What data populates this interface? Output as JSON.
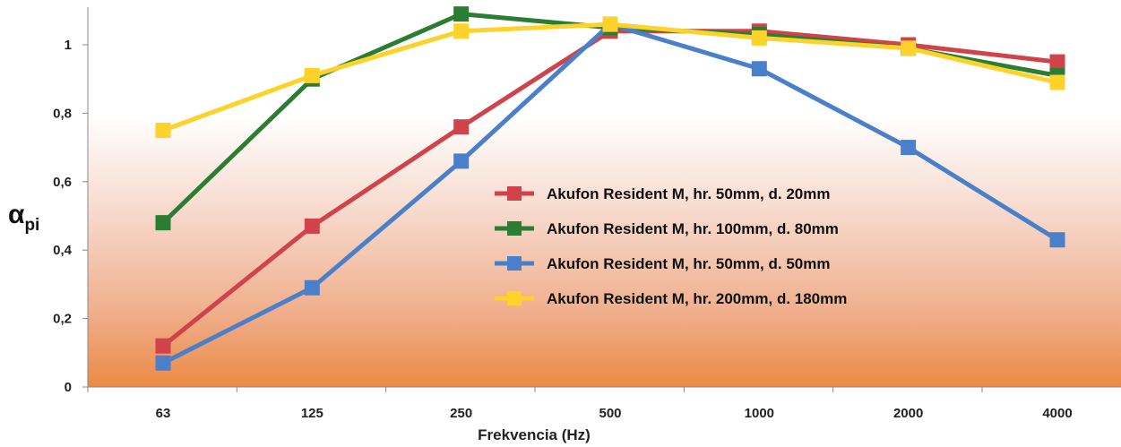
{
  "chart_data": {
    "type": "line",
    "categories": [
      "63",
      "125",
      "250",
      "500",
      "1000",
      "2000",
      "4000"
    ],
    "series": [
      {
        "name": "Akufon Resident M, hr. 50mm, d. 20mm",
        "color": "#d1434b",
        "values": [
          0.12,
          0.47,
          0.76,
          1.04,
          1.04,
          1.0,
          0.95
        ]
      },
      {
        "name": "Akufon Resident M, hr. 100mm, d. 80mm",
        "color": "#2a7d32",
        "values": [
          0.48,
          0.9,
          1.09,
          1.05,
          1.03,
          0.99,
          0.91
        ]
      },
      {
        "name": "Akufon Resident M, hr. 50mm, d. 50mm",
        "color": "#4a7fc9",
        "values": [
          0.07,
          0.29,
          0.66,
          1.06,
          0.93,
          0.7,
          0.43
        ]
      },
      {
        "name": "Akufon Resident M, hr. 200mm, d. 180mm",
        "color": "#fdd22a",
        "values": [
          0.75,
          0.91,
          1.04,
          1.06,
          1.02,
          0.99,
          0.89
        ]
      }
    ],
    "xlabel": "Frekvencia (Hz)",
    "ylabel_main": "α",
    "ylabel_sub": "pi",
    "ylim": [
      0,
      1.1
    ],
    "yticks": [
      {
        "value": 0,
        "label": "0"
      },
      {
        "value": 0.2,
        "label": "0,2"
      },
      {
        "value": 0.4,
        "label": "0,4"
      },
      {
        "value": 0.6,
        "label": "0,6"
      },
      {
        "value": 0.8,
        "label": "0,8"
      },
      {
        "value": 1,
        "label": "1"
      }
    ],
    "legend_position": "right-center",
    "grid": false,
    "background_gradient": [
      "#ffffff",
      "#eb8a45"
    ]
  }
}
